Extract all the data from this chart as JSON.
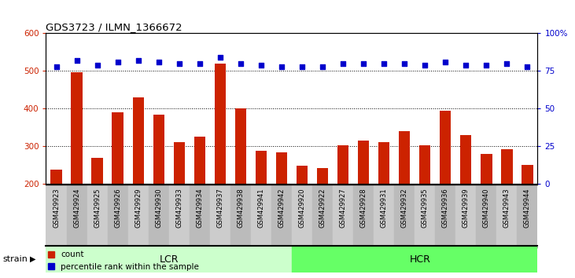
{
  "title": "GDS3723 / ILMN_1366672",
  "categories": [
    "GSM429923",
    "GSM429924",
    "GSM429925",
    "GSM429926",
    "GSM429929",
    "GSM429930",
    "GSM429933",
    "GSM429934",
    "GSM429937",
    "GSM429938",
    "GSM429941",
    "GSM429942",
    "GSM429920",
    "GSM429922",
    "GSM429927",
    "GSM429928",
    "GSM429931",
    "GSM429932",
    "GSM429935",
    "GSM429936",
    "GSM429939",
    "GSM429940",
    "GSM429943",
    "GSM429944"
  ],
  "bar_values": [
    237,
    497,
    268,
    390,
    430,
    383,
    310,
    325,
    520,
    400,
    288,
    283,
    247,
    242,
    302,
    315,
    311,
    340,
    302,
    393,
    330,
    278,
    291,
    249
  ],
  "blue_pct": [
    78,
    82,
    79,
    81,
    82,
    81,
    80,
    80,
    84,
    80,
    79,
    78,
    78,
    78,
    80,
    80,
    80,
    80,
    79,
    81,
    79,
    79,
    80,
    78
  ],
  "bar_color": "#CC2200",
  "dot_color": "#0000CC",
  "ylim_left": [
    200,
    600
  ],
  "ylim_right": [
    0,
    100
  ],
  "yticks_left": [
    200,
    300,
    400,
    500,
    600
  ],
  "yticks_right": [
    0,
    25,
    50,
    75,
    100
  ],
  "ytick_right_labels": [
    "0",
    "25",
    "50",
    "75",
    "100%"
  ],
  "lcr_count": 12,
  "lcr_label": "LCR",
  "hcr_label": "HCR",
  "lcr_color": "#ccffcc",
  "hcr_color": "#66ff66",
  "xtick_bg": "#cccccc",
  "strain_label": "strain",
  "legend_count_label": "count",
  "legend_pct_label": "percentile rank within the sample",
  "plot_bg": "#ffffff",
  "fig_bg": "#ffffff"
}
